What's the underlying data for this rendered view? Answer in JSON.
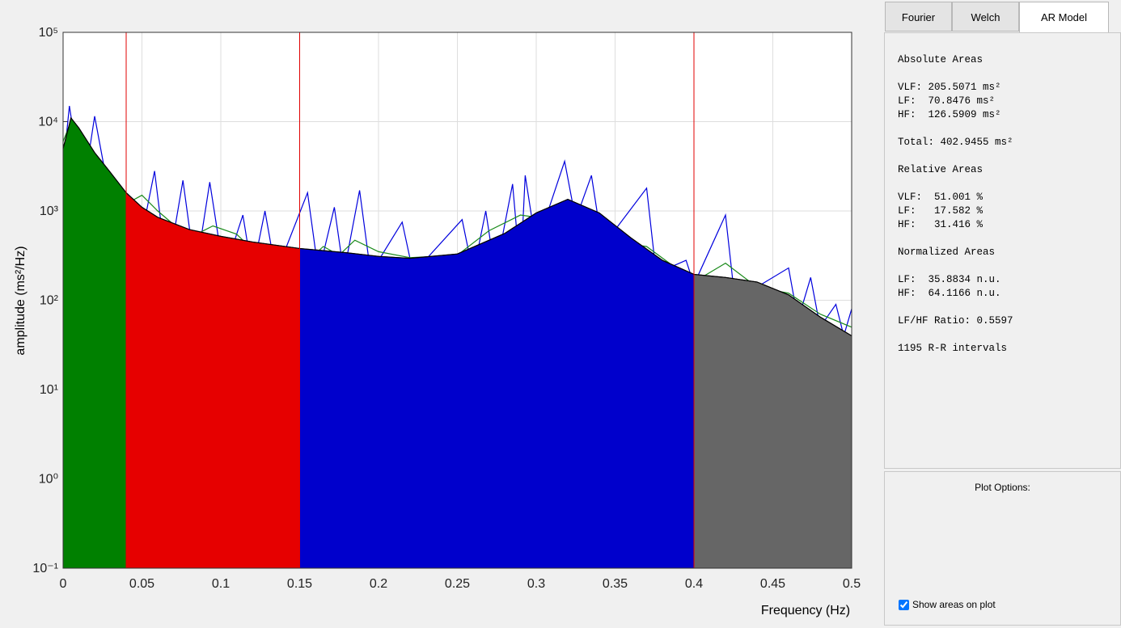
{
  "chart_data": {
    "type": "area",
    "xlabel": "Frequency (Hz)",
    "ylabel": "amplitude (ms²/Hz)",
    "x": [
      0,
      0.005,
      0.01,
      0.02,
      0.03,
      0.04,
      0.05,
      0.06,
      0.08,
      0.1,
      0.12,
      0.15,
      0.18,
      0.2,
      0.22,
      0.25,
      0.28,
      0.3,
      0.32,
      0.34,
      0.36,
      0.38,
      0.4,
      0.42,
      0.44,
      0.46,
      0.48,
      0.5
    ],
    "values": [
      5000,
      11000,
      8500,
      4500,
      2700,
      1600,
      1100,
      850,
      620,
      520,
      450,
      380,
      340,
      310,
      295,
      330,
      560,
      950,
      1350,
      950,
      500,
      280,
      195,
      180,
      160,
      115,
      65,
      40
    ],
    "color": "#000000",
    "band_edges": [
      0.04,
      0.15,
      0.4
    ],
    "band_colors": [
      "#008000",
      "#e60000",
      "#0000cc",
      "#666666"
    ],
    "band_line_color": "#e00000",
    "overlays": [
      {
        "color": "#0000dd",
        "x": [
          0,
          0.004,
          0.009,
          0.015,
          0.02,
          0.027,
          0.045,
          0.058,
          0.066,
          0.076,
          0.084,
          0.093,
          0.102,
          0.114,
          0.12,
          0.128,
          0.135,
          0.155,
          0.162,
          0.172,
          0.178,
          0.188,
          0.195,
          0.215,
          0.222,
          0.253,
          0.26,
          0.268,
          0.274,
          0.285,
          0.29,
          0.293,
          0.3,
          0.318,
          0.325,
          0.335,
          0.342,
          0.37,
          0.376,
          0.395,
          0.4,
          0.42,
          0.426,
          0.46,
          0.466,
          0.474,
          0.48,
          0.49,
          0.495,
          0.5
        ],
        "values": [
          3000,
          15000,
          4000,
          3000,
          11500,
          2500,
          200,
          2800,
          200,
          2200,
          200,
          2100,
          200,
          900,
          200,
          1000,
          200,
          1600,
          200,
          1100,
          200,
          1700,
          200,
          750,
          200,
          800,
          200,
          1000,
          200,
          2000,
          200,
          2500,
          400,
          3600,
          800,
          2500,
          400,
          1800,
          200,
          280,
          150,
          900,
          100,
          230,
          60,
          180,
          50,
          90,
          40,
          80
        ]
      },
      {
        "color": "#1a8a1a",
        "x": [
          0,
          0.005,
          0.02,
          0.04,
          0.05,
          0.06,
          0.08,
          0.095,
          0.11,
          0.13,
          0.15,
          0.165,
          0.175,
          0.185,
          0.2,
          0.22,
          0.25,
          0.27,
          0.29,
          0.31,
          0.33,
          0.35,
          0.37,
          0.39,
          0.4,
          0.42,
          0.44,
          0.46,
          0.48,
          0.5
        ],
        "values": [
          6000,
          10000,
          4000,
          1200,
          1500,
          1000,
          500,
          680,
          550,
          250,
          230,
          400,
          320,
          470,
          350,
          300,
          320,
          600,
          900,
          800,
          900,
          450,
          400,
          220,
          160,
          260,
          140,
          120,
          70,
          50
        ]
      }
    ],
    "xlim": [
      0,
      0.5
    ],
    "xticks": [
      0,
      0.05,
      0.1,
      0.15,
      0.2,
      0.25,
      0.3,
      0.35,
      0.4,
      0.45,
      0.5
    ],
    "ylim": [
      0.1,
      100000
    ],
    "log_y": true,
    "yticks": [
      {
        "value": 0.1,
        "label": "10⁻¹"
      },
      {
        "value": 1,
        "label": "10⁰"
      },
      {
        "value": 10,
        "label": "10¹"
      },
      {
        "value": 100,
        "label": "10²"
      },
      {
        "value": 1000,
        "label": "10³"
      },
      {
        "value": 10000,
        "label": "10⁴"
      },
      {
        "value": 100000,
        "label": "10⁵"
      }
    ],
    "grid": true
  },
  "panel": {
    "tabs": [
      "Fourier",
      "Welch",
      "AR Model"
    ],
    "active_tab": 2,
    "results": [
      [
        "Absolute Areas"
      ],
      [
        "VLF: 205.5071 ms²",
        "LF:  70.8476 ms²",
        "HF:  126.5909 ms²"
      ],
      [
        "Total: 402.9455 ms²"
      ],
      [
        "Relative Areas"
      ],
      [
        "VLF:  51.001 %",
        "LF:   17.582 %",
        "HF:   31.416 %"
      ],
      [
        "Normalized Areas"
      ],
      [
        "LF:  35.8834 n.u.",
        "HF:  64.1166 n.u."
      ],
      [
        "LF/HF Ratio: 0.5597"
      ],
      [
        "1195 R-R intervals"
      ]
    ],
    "options_title": "Plot Options:",
    "show_areas_label": "Show areas on plot",
    "show_areas": true
  }
}
